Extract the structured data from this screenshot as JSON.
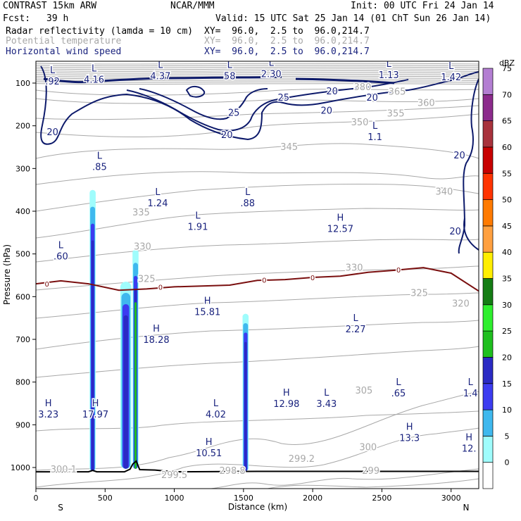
{
  "header": {
    "model": "CONTRAST 15km ARW",
    "org": "NCAR/MMM",
    "init": "Init: 00 UTC Fri 24 Jan 14",
    "fcst_label": "Fcst:",
    "fcst_value": "39 h",
    "valid": "Valid: 15 UTC Sat 25 Jan 14 (01 ChT Sun 26 Jan 14)",
    "field1_name": "Radar reflectivity (lamda = 10 cm)",
    "field1_xy": "XY=  96.0,  2.5 to  96.0,214.7",
    "field2_name": "Potential temperature",
    "field2_xy": "XY=  96.0,  2.5 to  96.0,214.7",
    "field3_name": "Horizontal wind speed",
    "field3_xy": "XY=  96.0,  2.5 to  96.0,214.7"
  },
  "colors": {
    "theta": "#a8a8a8",
    "wind": "#0d1a6b",
    "wind_label": "#1a237e",
    "zero_line": "#7a0f0f",
    "terrain": "#000000"
  },
  "chart_data": {
    "type": "cross-section",
    "xlabel": "Distance (km)",
    "ylabel": "Pressure (hPa)",
    "xlim": [
      0,
      3200
    ],
    "ylim": [
      1050,
      70
    ],
    "x_ticks": [
      "0",
      "500",
      "1000",
      "1500",
      "2000",
      "2500",
      "3000"
    ],
    "x_tick_values": [
      0,
      500,
      1000,
      1500,
      2000,
      2500,
      3000
    ],
    "y_ticks": [
      "100",
      "200",
      "300",
      "400",
      "500",
      "600",
      "700",
      "800",
      "900",
      "1000"
    ],
    "y_tick_values": [
      100,
      200,
      300,
      400,
      500,
      600,
      700,
      800,
      900,
      1000
    ],
    "end_labels": {
      "left": "S",
      "right": "N"
    },
    "colorbar": {
      "units": "dBZ",
      "levels": [
        "0",
        "5",
        "10",
        "15",
        "20",
        "25",
        "30",
        "35",
        "40",
        "45",
        "50",
        "55",
        "60",
        "65",
        "70",
        "75"
      ],
      "level_values": [
        0,
        5,
        10,
        15,
        20,
        25,
        30,
        35,
        40,
        45,
        50,
        55,
        60,
        65,
        70,
        75
      ],
      "colors": [
        "#ffffff",
        "#9ffcfc",
        "#3fb8ee",
        "#3c3cf0",
        "#2a2ac4",
        "#1fbf1f",
        "#2eef2e",
        "#147d14",
        "#ffee00",
        "#ffa040",
        "#ff7a00",
        "#ff3300",
        "#c80000",
        "#a8323c",
        "#8c2a8c",
        "#b37ed2"
      ]
    },
    "theta_isentropes_K": [
      299,
      300,
      305,
      310,
      315,
      320,
      325,
      330,
      335,
      340,
      345,
      350,
      355,
      360,
      365,
      370,
      380
    ],
    "wind_contours_ms": [
      20,
      25
    ],
    "zero_isotherm_label": "0",
    "pressure_labels": [
      {
        "type": "L",
        "value": ".92",
        "x": 120,
        "p": 100
      },
      {
        "type": "L",
        "value": "4.16",
        "x": 420,
        "p": 96
      },
      {
        "type": "L",
        "value": "4.37",
        "x": 900,
        "p": 88
      },
      {
        "type": "L",
        "value": "58",
        "x": 1400,
        "p": 88
      },
      {
        "type": "L",
        "value": "2.30",
        "x": 1700,
        "p": 83
      },
      {
        "type": "L",
        "value": "1.13",
        "x": 2550,
        "p": 85
      },
      {
        "type": "L",
        "value": "1.42",
        "x": 3000,
        "p": 90
      },
      {
        "type": "L",
        "value": "1.1",
        "x": 2450,
        "p": 230
      },
      {
        "type": "L",
        "value": ".85",
        "x": 460,
        "p": 300
      },
      {
        "type": "L",
        "value": "1.24",
        "x": 880,
        "p": 385
      },
      {
        "type": "L",
        "value": ".88",
        "x": 1530,
        "p": 385
      },
      {
        "type": "L",
        "value": "1.91",
        "x": 1170,
        "p": 440
      },
      {
        "type": "H",
        "value": "12.57",
        "x": 2200,
        "p": 445
      },
      {
        "type": "L",
        "value": ".60",
        "x": 180,
        "p": 510
      },
      {
        "type": "H",
        "value": "15.81",
        "x": 1240,
        "p": 640
      },
      {
        "type": "L",
        "value": "2.27",
        "x": 2310,
        "p": 680
      },
      {
        "type": "H",
        "value": "18.28",
        "x": 870,
        "p": 705
      },
      {
        "type": "L",
        "value": ".65",
        "x": 2620,
        "p": 830
      },
      {
        "type": "L",
        "value": "1.4",
        "x": 3140,
        "p": 830
      },
      {
        "type": "H",
        "value": "12.98",
        "x": 1810,
        "p": 855
      },
      {
        "type": "L",
        "value": "3.43",
        "x": 2100,
        "p": 855
      },
      {
        "type": "H",
        "value": "3.23",
        "x": 90,
        "p": 880
      },
      {
        "type": "H",
        "value": "17.97",
        "x": 430,
        "p": 880
      },
      {
        "type": "L",
        "value": "4.02",
        "x": 1300,
        "p": 880
      },
      {
        "type": "H",
        "value": "13.3",
        "x": 2700,
        "p": 935
      },
      {
        "type": "H",
        "value": "12.",
        "x": 3130,
        "p": 960
      },
      {
        "type": "H",
        "value": "10.51",
        "x": 1250,
        "p": 970
      }
    ],
    "theta_surface_labels": [
      {
        "value": "300.1",
        "x": 200,
        "p": 1005
      },
      {
        "value": "299.2",
        "x": 1920,
        "p": 980
      },
      {
        "value": "299.5",
        "x": 1000,
        "p": 1018
      },
      {
        "value": "298.8",
        "x": 1420,
        "p": 1008
      },
      {
        "value": "299",
        "x": 2420,
        "p": 1008
      }
    ],
    "theta_inline_labels": [
      {
        "value": "380",
        "x": 2360,
        "p": 110
      },
      {
        "value": "365",
        "x": 2610,
        "p": 121
      },
      {
        "value": "360",
        "x": 2820,
        "p": 147
      },
      {
        "value": "355",
        "x": 2600,
        "p": 172
      },
      {
        "value": "350",
        "x": 2340,
        "p": 192
      },
      {
        "value": "345",
        "x": 1830,
        "p": 250
      },
      {
        "value": "340",
        "x": 2950,
        "p": 355
      },
      {
        "value": "335",
        "x": 760,
        "p": 403
      },
      {
        "value": "330",
        "x": 770,
        "p": 483
      },
      {
        "value": "330",
        "x": 2300,
        "p": 533
      },
      {
        "value": "325",
        "x": 800,
        "p": 559
      },
      {
        "value": "325",
        "x": 2770,
        "p": 592
      },
      {
        "value": "320",
        "x": 3070,
        "p": 617
      },
      {
        "value": "305",
        "x": 2370,
        "p": 820
      },
      {
        "value": "300",
        "x": 2400,
        "p": 953
      }
    ],
    "wind_inline_labels": [
      {
        "value": "20",
        "x": 120,
        "p": 215
      },
      {
        "value": "25",
        "x": 1790,
        "p": 135
      },
      {
        "value": "20",
        "x": 2140,
        "p": 120
      },
      {
        "value": "20",
        "x": 2430,
        "p": 135
      },
      {
        "value": "20",
        "x": 2100,
        "p": 165
      },
      {
        "value": "25",
        "x": 1430,
        "p": 170
      },
      {
        "value": "20",
        "x": 1380,
        "p": 222
      },
      {
        "value": "20",
        "x": 3060,
        "p": 270
      },
      {
        "value": "20",
        "x": 3030,
        "p": 448
      }
    ],
    "reflectivity_columns": [
      {
        "x_center": 410,
        "half_width": 22,
        "top_p": 350,
        "bottom_p": 1008,
        "max_dbz": 18
      },
      {
        "x_center": 650,
        "half_width": 40,
        "top_p": 565,
        "bottom_p": 1003,
        "max_dbz": 20
      },
      {
        "x_center": 720,
        "half_width": 22,
        "top_p": 490,
        "bottom_p": 1003,
        "max_dbz": 27
      },
      {
        "x_center": 1515,
        "half_width": 22,
        "top_p": 640,
        "bottom_p": 1008,
        "max_dbz": 20
      }
    ],
    "zero_isotherm": [
      [
        0,
        570
      ],
      [
        180,
        563
      ],
      [
        380,
        570
      ],
      [
        600,
        585
      ],
      [
        800,
        582
      ],
      [
        1000,
        577
      ],
      [
        1200,
        575
      ],
      [
        1400,
        573
      ],
      [
        1600,
        562
      ],
      [
        1800,
        560
      ],
      [
        2000,
        555
      ],
      [
        2200,
        552
      ],
      [
        2400,
        543
      ],
      [
        2600,
        538
      ],
      [
        2800,
        532
      ],
      [
        3000,
        545
      ],
      [
        3200,
        587
      ]
    ],
    "terrain": [
      [
        0,
        1010
      ],
      [
        300,
        1010
      ],
      [
        380,
        1010
      ],
      [
        410,
        1007
      ],
      [
        440,
        1010
      ],
      [
        640,
        1010
      ],
      [
        680,
        1004
      ],
      [
        700,
        992
      ],
      [
        725,
        985
      ],
      [
        750,
        1005
      ],
      [
        860,
        1006
      ],
      [
        1000,
        1010
      ],
      [
        1600,
        1009
      ],
      [
        2500,
        1009
      ],
      [
        3200,
        1009
      ]
    ]
  }
}
